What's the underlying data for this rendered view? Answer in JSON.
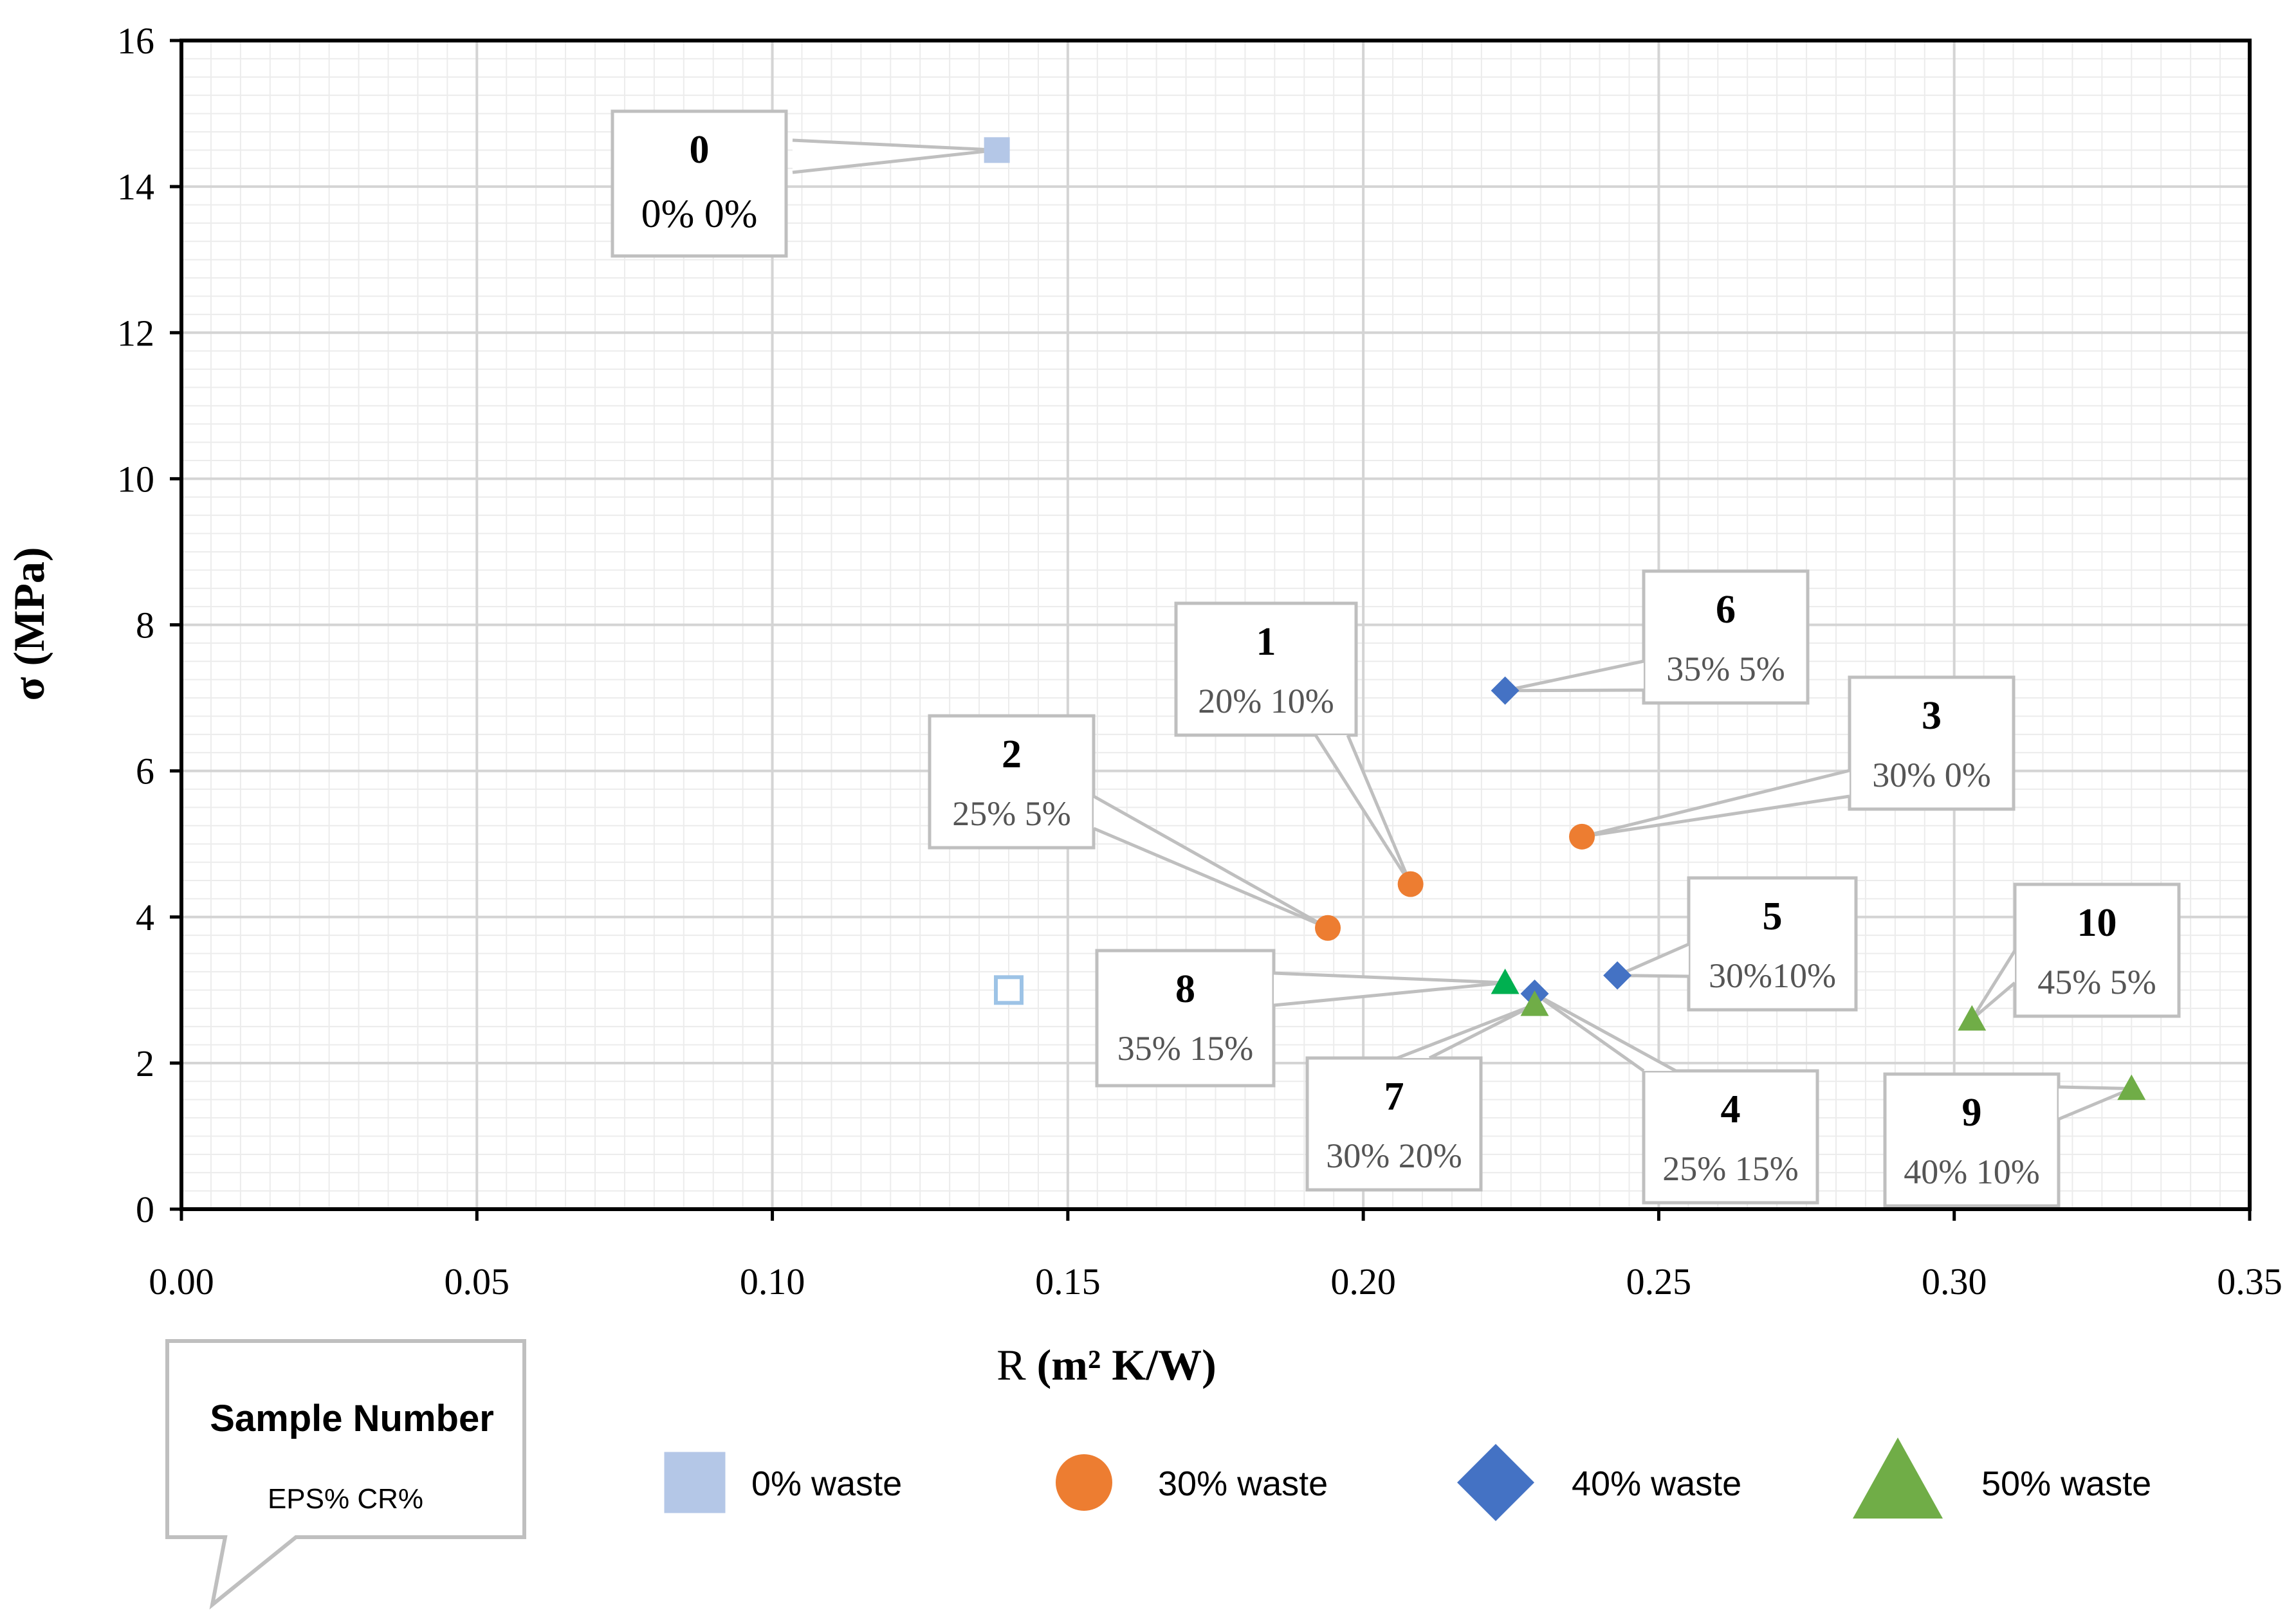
{
  "chart_data": {
    "type": "scatter",
    "title": "",
    "xlabel_prefix": "R",
    "xlabel_unit": "(m² K/W)",
    "ylabel": "σ (MPa)",
    "xlim": [
      0.0,
      0.35
    ],
    "ylim": [
      0,
      16
    ],
    "x_ticks": [
      0.0,
      0.05,
      0.1,
      0.15,
      0.2,
      0.25,
      0.3,
      0.35
    ],
    "x_tick_labels": [
      "0.00",
      "0.05",
      "0.10",
      "0.15",
      "0.20",
      "0.25",
      "0.30",
      "0.35"
    ],
    "y_ticks": [
      0,
      2,
      4,
      6,
      8,
      10,
      12,
      14,
      16
    ],
    "y_tick_labels": [
      "0",
      "2",
      "4",
      "6",
      "8",
      "10",
      "12",
      "14",
      "16"
    ],
    "grid": true,
    "series": [
      {
        "name": "0% waste",
        "marker": "square",
        "color": "#b4c7e7",
        "points": [
          {
            "x": 0.138,
            "y": 14.5,
            "sample": "0",
            "composition": "0% 0%"
          }
        ]
      },
      {
        "name": "30% waste",
        "marker": "circle",
        "color": "#ed7d31",
        "points": [
          {
            "x": 0.208,
            "y": 4.45,
            "sample": "1",
            "composition": "20% 10%"
          },
          {
            "x": 0.194,
            "y": 3.85,
            "sample": "2",
            "composition": "25% 5%"
          },
          {
            "x": 0.237,
            "y": 5.1,
            "sample": "3",
            "composition": "30% 0%"
          }
        ]
      },
      {
        "name": "40% waste",
        "marker": "diamond",
        "color": "#4472c4",
        "points": [
          {
            "x": 0.229,
            "y": 2.95,
            "sample": "4",
            "composition": "25% 15%"
          },
          {
            "x": 0.243,
            "y": 3.2,
            "sample": "5",
            "composition": "30%10%"
          },
          {
            "x": 0.224,
            "y": 7.1,
            "sample": "6",
            "composition": "35% 5%"
          }
        ]
      },
      {
        "name": "50% waste",
        "marker": "triangle",
        "color": "#70ad47",
        "points": [
          {
            "x": 0.229,
            "y": 2.8,
            "sample": "7",
            "composition": "30% 20%"
          },
          {
            "x": 0.224,
            "y": 3.1,
            "sample": "8",
            "composition": "35% 15%",
            "color": "#00b050"
          },
          {
            "x": 0.33,
            "y": 1.65,
            "sample": "9",
            "composition": "40% 10%"
          },
          {
            "x": 0.303,
            "y": 2.6,
            "sample": "10",
            "composition": "45% 5%"
          }
        ]
      },
      {
        "name": "",
        "marker": "square-open",
        "color": "#9dc3e6",
        "show_in_legend": false,
        "points": [
          {
            "x": 0.14,
            "y": 3.0
          }
        ]
      }
    ],
    "legend_position": "bottom",
    "key_box": {
      "title": "Sample Number",
      "subtitle": "EPS% CR%"
    }
  }
}
